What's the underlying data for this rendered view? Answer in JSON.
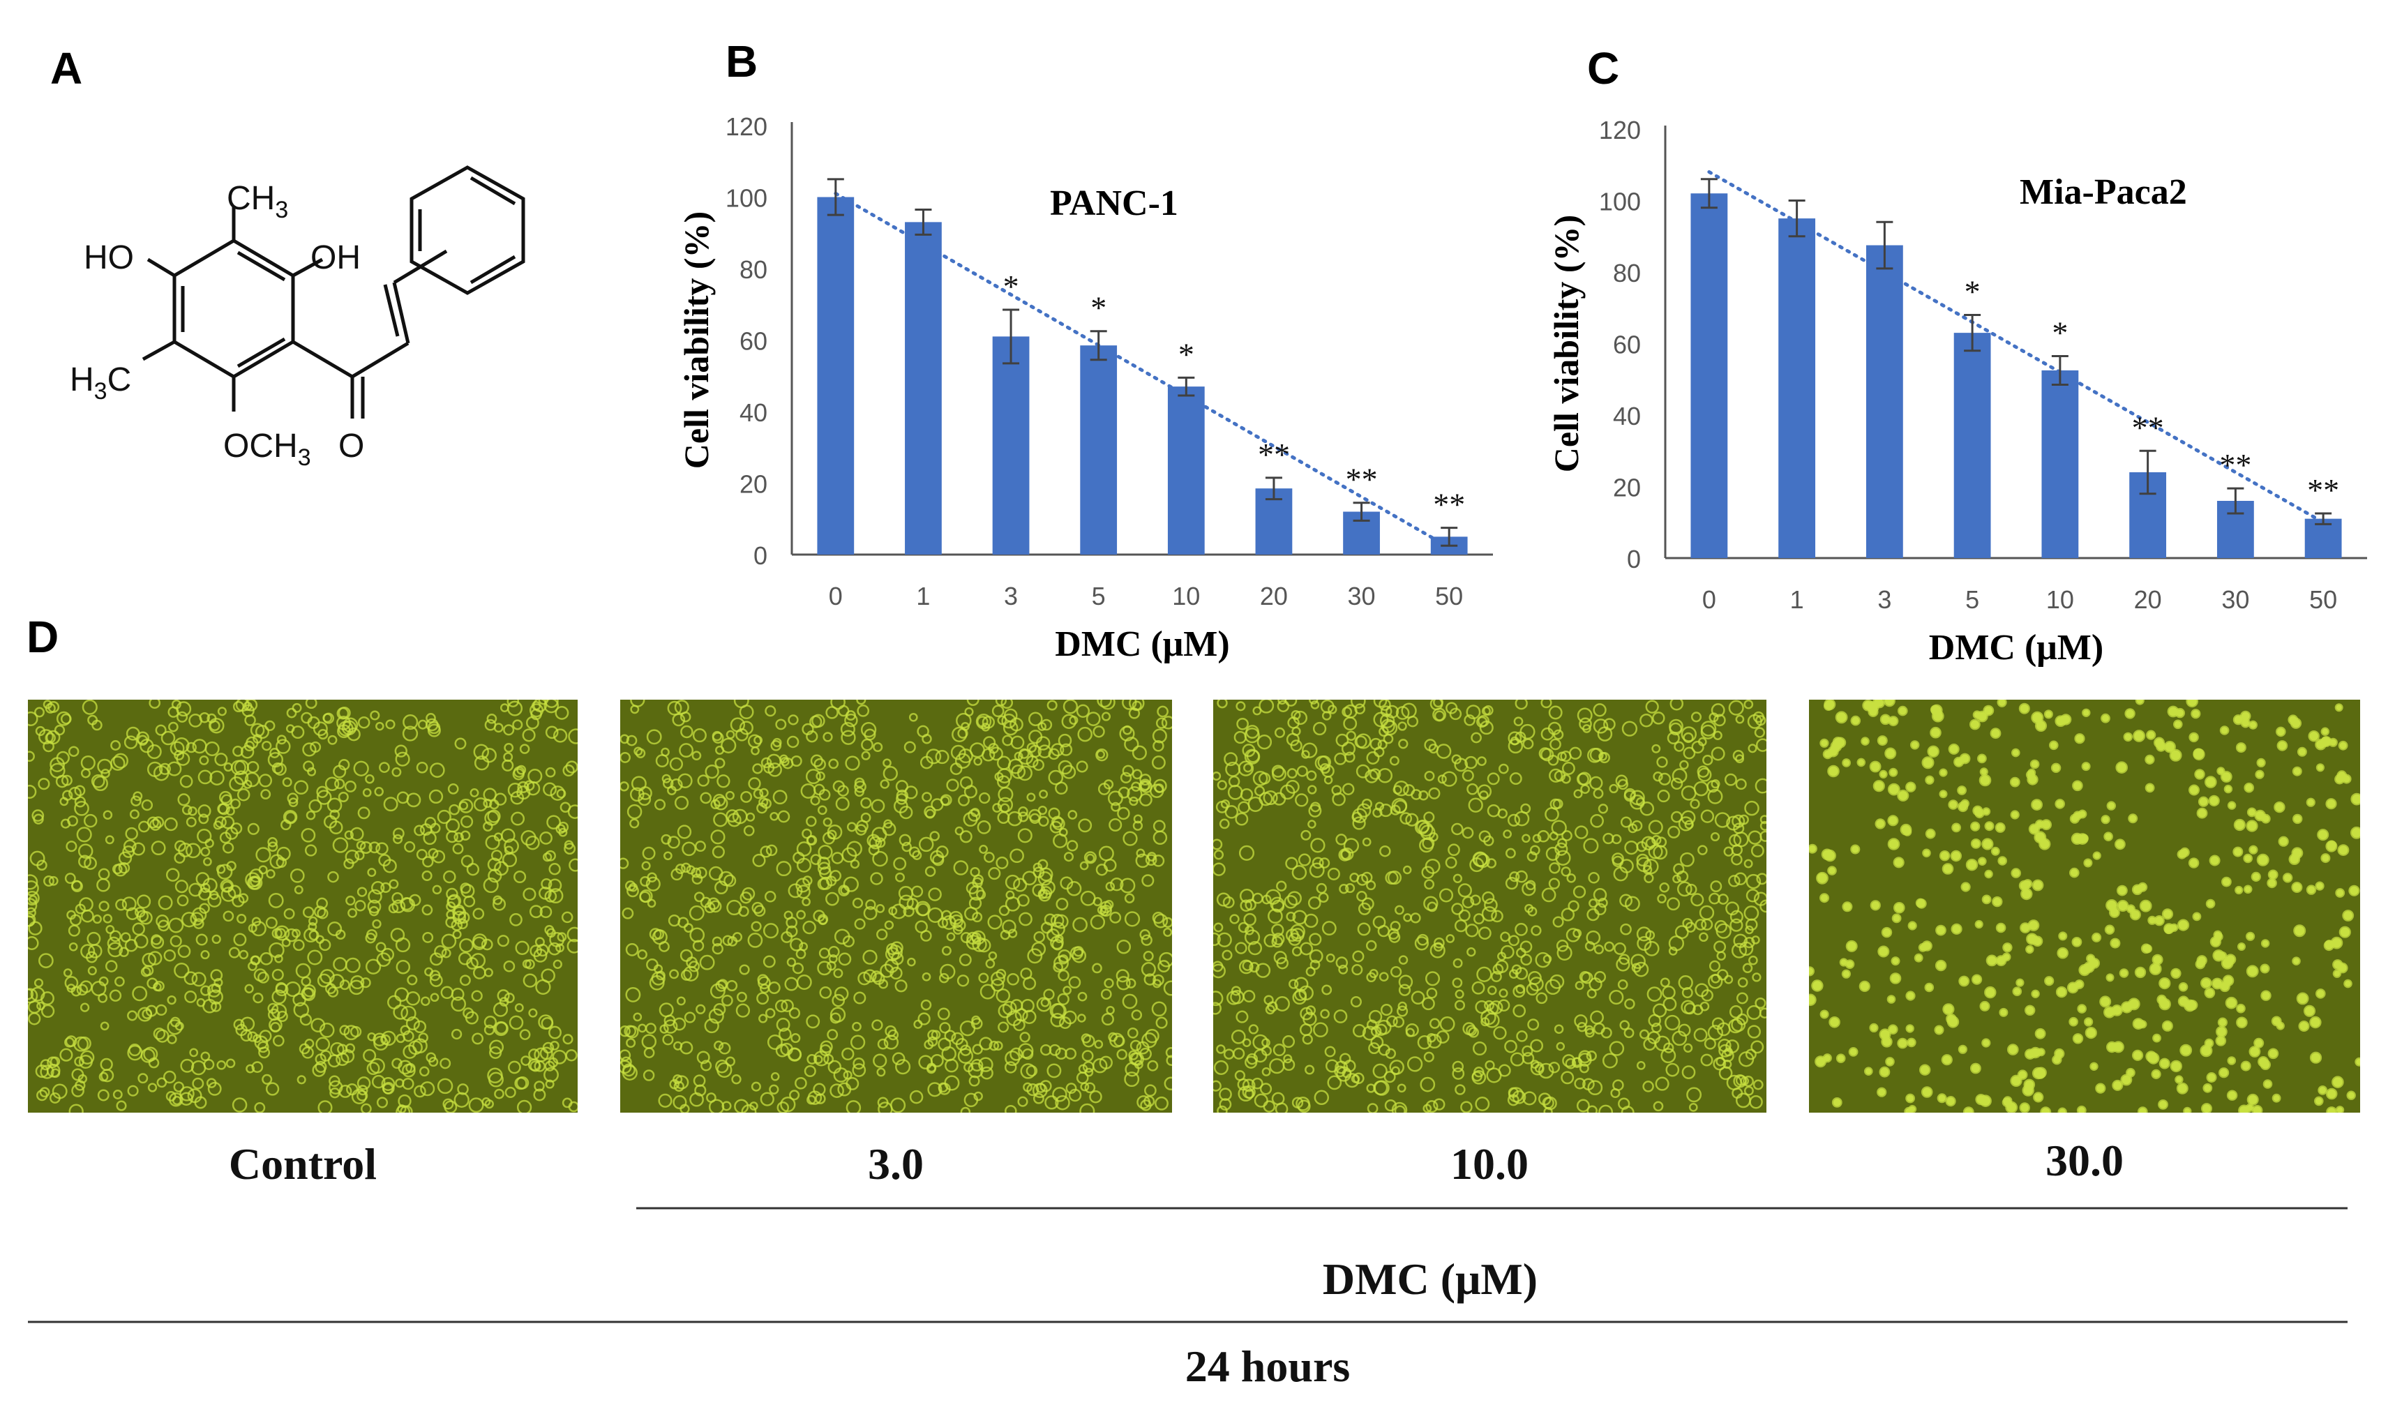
{
  "panels": {
    "a": "A",
    "b": "B",
    "c": "C",
    "d": "D"
  },
  "molecule": {
    "ch3_top": "CH3",
    "ho": "HO",
    "oh": "OH",
    "h3c": "H3C",
    "och3": "OCH3",
    "o": "O"
  },
  "colors": {
    "bar": "#4472C4",
    "trend": "#4472C4",
    "error": "#404040",
    "micro_bg": "#5a6a10",
    "cell": "#c8e040"
  },
  "chart_data": [
    {
      "type": "bar",
      "title": "PANC-1",
      "xlabel": "DMC (μM)",
      "ylabel": "Cell viability (%)",
      "categories": [
        "0",
        "1",
        "3",
        "5",
        "10",
        "20",
        "30",
        "50"
      ],
      "values": [
        100,
        93,
        61,
        58.5,
        47,
        18.5,
        12,
        5
      ],
      "errors": [
        5,
        3.5,
        7.5,
        4,
        2.5,
        3,
        2.5,
        2.5
      ],
      "significance": [
        "",
        "",
        "*",
        "*",
        "*",
        "**",
        "**",
        "**"
      ],
      "ylim": [
        0,
        120
      ],
      "yticks": [
        "0",
        "20",
        "40",
        "60",
        "80",
        "100",
        "120"
      ],
      "trendline": {
        "style": "dotted",
        "start": 101,
        "end": 2
      }
    },
    {
      "type": "bar",
      "title": "Mia-Paca2",
      "xlabel": "DMC (μM)",
      "ylabel": "Cell viability (%)",
      "categories": [
        "0",
        "1",
        "3",
        "5",
        "10",
        "20",
        "30",
        "50"
      ],
      "values": [
        102,
        95,
        87.5,
        63,
        52.5,
        24,
        16,
        11
      ],
      "errors": [
        4,
        5,
        6.5,
        5,
        4,
        6,
        3.5,
        1.5
      ],
      "significance": [
        "",
        "",
        "",
        "*",
        "*",
        "**",
        "**",
        "**"
      ],
      "ylim": [
        0,
        120
      ],
      "yticks": [
        "0",
        "20",
        "40",
        "60",
        "80",
        "100",
        "120"
      ],
      "trendline": {
        "style": "dotted",
        "start": 108,
        "end": 10
      }
    }
  ],
  "micrographs": {
    "labels": [
      "Control",
      "3.0",
      "10.0",
      "30.0"
    ],
    "densities": [
      1,
      1,
      1,
      0.55
    ],
    "dmc_label": "DMC (μM)",
    "time_label": "24 hours"
  }
}
